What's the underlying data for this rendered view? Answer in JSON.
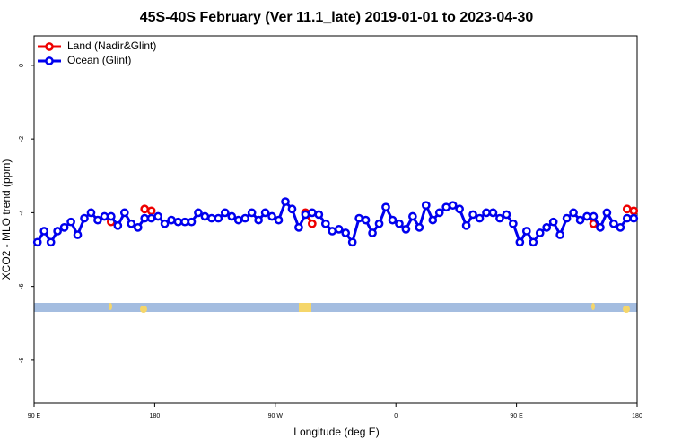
{
  "chart_data": {
    "type": "line",
    "title": "45S-40S February (Ver 11.1_late)   2019-01-01 to 2023-04-30",
    "x_label": "Longitude (deg E)",
    "y_label": "XCO2 - MLO trend (ppm)",
    "xlim": [
      90,
      540
    ],
    "xticks": [
      {
        "value": 90,
        "label": "90 E"
      },
      180,
      {
        "value": 270,
        "label": "90 W"
      },
      {
        "value": 360,
        "label": "0"
      },
      {
        "value": 450,
        "label": "90 E"
      },
      {
        "value": 540,
        "label": "180"
      }
    ],
    "ylim": [
      -9.17,
      0.8
    ],
    "yticks": [
      0,
      -2,
      -4,
      -6,
      -8
    ],
    "legend": "top-left",
    "x": [
      92.5,
      97.5,
      102.5,
      107.5,
      112.5,
      117.5,
      122.5,
      127.5,
      132.5,
      137.5,
      142.5,
      147.5,
      152.5,
      157.5,
      162.5,
      167.5,
      172.5,
      177.5,
      182.5,
      187.5,
      192.5,
      197.5,
      202.5,
      207.5,
      212.5,
      217.5,
      222.5,
      227.5,
      232.5,
      237.5,
      242.5,
      247.5,
      252.5,
      257.5,
      262.5,
      267.5,
      272.5,
      277.5,
      282.5,
      287.5,
      292.5,
      297.5,
      302.5,
      307.5,
      312.5,
      317.5,
      322.5,
      327.5,
      332.5,
      337.5,
      342.5,
      347.5,
      352.5,
      357.5,
      362.5,
      367.5,
      372.5,
      377.5,
      382.5,
      387.5,
      392.5,
      397.5,
      402.5,
      407.5,
      412.5,
      417.5,
      422.5,
      427.5,
      432.5,
      437.5,
      442.5,
      447.5,
      452.5,
      457.5,
      462.5,
      467.5,
      472.5,
      477.5,
      482.5,
      487.5,
      492.5,
      497.5,
      502.5,
      507.5,
      512.5,
      517.5,
      522.5,
      527.5,
      532.5,
      537.5
    ],
    "series": [
      {
        "name": "Land (Nadir&Glint)",
        "color": "#ee0000",
        "values": [
          null,
          null,
          null,
          null,
          null,
          null,
          null,
          null,
          null,
          null,
          null,
          -4.25,
          null,
          null,
          null,
          null,
          -3.9,
          -3.95,
          null,
          null,
          null,
          null,
          null,
          null,
          null,
          null,
          null,
          null,
          null,
          null,
          null,
          null,
          null,
          null,
          null,
          null,
          null,
          null,
          null,
          null,
          -4.0,
          -4.3,
          null,
          null,
          null,
          null,
          null,
          null,
          null,
          null,
          null,
          null,
          null,
          null,
          null,
          null,
          null,
          null,
          null,
          null,
          null,
          null,
          null,
          null,
          null,
          null,
          null,
          null,
          null,
          null,
          null,
          null,
          null,
          null,
          null,
          null,
          null,
          null,
          null,
          null,
          null,
          null,
          null,
          -4.3,
          null,
          null,
          null,
          null,
          -3.9,
          -3.95
        ]
      },
      {
        "name": "Ocean (Glint)",
        "color": "#0000ee",
        "values": [
          -4.8,
          -4.5,
          -4.8,
          -4.5,
          -4.4,
          -4.25,
          -4.6,
          -4.15,
          -4.0,
          -4.2,
          -4.1,
          -4.1,
          -4.35,
          -4.0,
          -4.3,
          -4.4,
          -4.15,
          -4.15,
          -4.1,
          -4.3,
          -4.2,
          -4.25,
          -4.25,
          -4.25,
          -4.0,
          -4.1,
          -4.15,
          -4.15,
          -4.0,
          -4.1,
          -4.2,
          -4.15,
          -4.0,
          -4.2,
          -4.0,
          -4.1,
          -4.2,
          -3.7,
          -3.9,
          -4.4,
          -4.05,
          -4.0,
          -4.05,
          -4.3,
          -4.5,
          -4.45,
          -4.55,
          -4.8,
          -4.15,
          -4.2,
          -4.55,
          -4.3,
          -3.85,
          -4.2,
          -4.3,
          -4.45,
          -4.1,
          -4.4,
          -3.8,
          -4.2,
          -4.0,
          -3.85,
          -3.8,
          -3.9,
          -4.35,
          -4.05,
          -4.15,
          -4.0,
          -4.0,
          -4.15,
          -4.05,
          -4.3,
          -4.8,
          -4.5,
          -4.8,
          -4.55,
          -4.4,
          -4.25,
          -4.6,
          -4.15,
          -4.0,
          -4.2,
          -4.1,
          -4.1,
          -4.4,
          -4.0,
          -4.3,
          -4.4,
          -4.15,
          -4.15
        ]
      }
    ]
  }
}
